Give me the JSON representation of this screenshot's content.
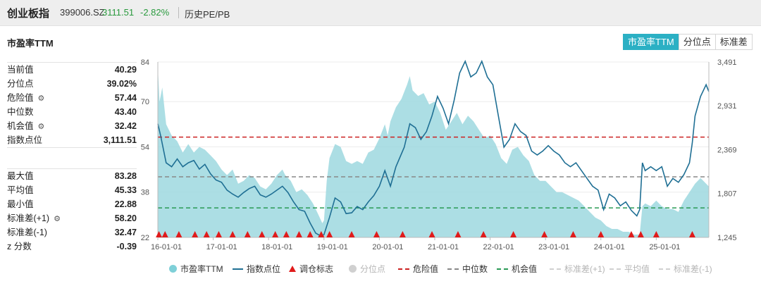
{
  "header": {
    "name": "创业板指",
    "code": "399006.SZ",
    "price": "3111.51",
    "change": "-2.82%",
    "history_link": "历史PE/PB"
  },
  "chart_title": "市盈率TTM",
  "tabs": [
    {
      "label": "市盈率TTM",
      "active": true
    },
    {
      "label": "分位点",
      "active": false
    },
    {
      "label": "标准差",
      "active": false
    }
  ],
  "stats_top": [
    {
      "label": "当前值",
      "value": "40.29",
      "icon": ""
    },
    {
      "label": "分位点",
      "value": "39.02%",
      "icon": ""
    },
    {
      "label": "危险值",
      "value": "57.44",
      "icon": "gear-icon"
    },
    {
      "label": "中位数",
      "value": "43.40",
      "icon": ""
    },
    {
      "label": "机会值",
      "value": "32.42",
      "icon": "gear-icon"
    },
    {
      "label": "指数点位",
      "value": "3,111.51",
      "icon": ""
    }
  ],
  "stats_bottom": [
    {
      "label": "最大值",
      "value": "83.28",
      "icon": ""
    },
    {
      "label": "平均值",
      "value": "45.33",
      "icon": ""
    },
    {
      "label": "最小值",
      "value": "22.88",
      "icon": ""
    },
    {
      "label": "标准差(+1)",
      "value": "58.20",
      "icon": "gear-icon"
    },
    {
      "label": "标准差(-1)",
      "value": "32.47",
      "icon": ""
    },
    {
      "label": "z 分数",
      "value": "-0.39",
      "icon": ""
    }
  ],
  "legend": [
    {
      "label": "市盈率TTM",
      "symbol": "dot",
      "color": "#7fd0d8",
      "dim": false
    },
    {
      "label": "指数点位",
      "symbol": "line",
      "color": "#1f6f94",
      "dim": false
    },
    {
      "label": "调仓标志",
      "symbol": "triangle",
      "color": "#e01b1b",
      "dim": false
    },
    {
      "label": "分位点",
      "symbol": "dot",
      "color": "#d0d0d0",
      "dim": true
    },
    {
      "label": "危险值",
      "symbol": "dash",
      "color": "#cc2222",
      "dim": false
    },
    {
      "label": "中位数",
      "symbol": "dash",
      "color": "#888888",
      "dim": false
    },
    {
      "label": "机会值",
      "symbol": "dash",
      "color": "#2a9a55",
      "dim": false
    },
    {
      "label": "标准差(+1)",
      "symbol": "dash",
      "color": "#d0d0d0",
      "dim": true
    },
    {
      "label": "平均值",
      "symbol": "dash",
      "color": "#d0d0d0",
      "dim": true
    },
    {
      "label": "标准差(-1)",
      "symbol": "dash",
      "color": "#d0d0d0",
      "dim": true
    }
  ],
  "chart_data": {
    "type": "area",
    "x_ticks": [
      "16-01-01",
      "17-01-01",
      "18-01-01",
      "19-01-01",
      "20-01-01",
      "21-01-01",
      "22-01-01",
      "23-01-01",
      "24-01-01",
      "25-01-01"
    ],
    "y_left_ticks": [
      "22",
      "38",
      "54",
      "70",
      "84"
    ],
    "y_left_range": [
      22,
      84
    ],
    "y_right_ticks": [
      "1,245",
      "1,807",
      "2,369",
      "2,931",
      "3,491"
    ],
    "y_right_range": [
      1245,
      3491
    ],
    "x_range": [
      2016.0,
      2025.95
    ],
    "reference_lines": [
      {
        "name": "危险值",
        "value": 57.44,
        "color": "#cc2222"
      },
      {
        "name": "中位数",
        "value": 43.4,
        "color": "#888888"
      },
      {
        "name": "机会值",
        "value": 32.42,
        "color": "#2a9a55"
      }
    ],
    "series": [
      {
        "name": "市盈率TTM",
        "color": "#9dd8df",
        "points": [
          [
            2016.0,
            82
          ],
          [
            2016.03,
            70
          ],
          [
            2016.08,
            75
          ],
          [
            2016.15,
            62
          ],
          [
            2016.25,
            58
          ],
          [
            2016.35,
            56
          ],
          [
            2016.45,
            52
          ],
          [
            2016.55,
            55
          ],
          [
            2016.65,
            52
          ],
          [
            2016.75,
            54
          ],
          [
            2016.85,
            53
          ],
          [
            2016.95,
            51
          ],
          [
            2017.05,
            49
          ],
          [
            2017.15,
            46
          ],
          [
            2017.25,
            44
          ],
          [
            2017.35,
            46
          ],
          [
            2017.45,
            41
          ],
          [
            2017.55,
            42
          ],
          [
            2017.65,
            44
          ],
          [
            2017.75,
            43
          ],
          [
            2017.85,
            40
          ],
          [
            2017.95,
            39
          ],
          [
            2018.05,
            41
          ],
          [
            2018.15,
            44
          ],
          [
            2018.25,
            46
          ],
          [
            2018.3,
            44
          ],
          [
            2018.4,
            42
          ],
          [
            2018.5,
            38
          ],
          [
            2018.6,
            39
          ],
          [
            2018.7,
            37
          ],
          [
            2018.8,
            34
          ],
          [
            2018.9,
            30
          ],
          [
            2018.97,
            27
          ],
          [
            2019.0,
            28
          ],
          [
            2019.05,
            42
          ],
          [
            2019.1,
            50
          ],
          [
            2019.2,
            55
          ],
          [
            2019.3,
            54
          ],
          [
            2019.4,
            49
          ],
          [
            2019.5,
            48
          ],
          [
            2019.6,
            49
          ],
          [
            2019.7,
            48
          ],
          [
            2019.8,
            52
          ],
          [
            2019.9,
            53
          ],
          [
            2020.0,
            57
          ],
          [
            2020.1,
            62
          ],
          [
            2020.15,
            58
          ],
          [
            2020.2,
            63
          ],
          [
            2020.3,
            68
          ],
          [
            2020.4,
            71
          ],
          [
            2020.5,
            76
          ],
          [
            2020.55,
            79
          ],
          [
            2020.6,
            74
          ],
          [
            2020.7,
            72
          ],
          [
            2020.8,
            73
          ],
          [
            2020.9,
            69
          ],
          [
            2021.0,
            70
          ],
          [
            2021.1,
            66
          ],
          [
            2021.2,
            60
          ],
          [
            2021.3,
            63
          ],
          [
            2021.4,
            66
          ],
          [
            2021.5,
            62
          ],
          [
            2021.6,
            65
          ],
          [
            2021.7,
            63
          ],
          [
            2021.8,
            60
          ],
          [
            2021.9,
            57
          ],
          [
            2022.0,
            58
          ],
          [
            2022.1,
            55
          ],
          [
            2022.2,
            50
          ],
          [
            2022.3,
            48
          ],
          [
            2022.4,
            53
          ],
          [
            2022.5,
            54
          ],
          [
            2022.6,
            51
          ],
          [
            2022.7,
            49
          ],
          [
            2022.8,
            44
          ],
          [
            2022.9,
            42
          ],
          [
            2023.0,
            42
          ],
          [
            2023.1,
            40
          ],
          [
            2023.2,
            38
          ],
          [
            2023.3,
            38
          ],
          [
            2023.4,
            37
          ],
          [
            2023.5,
            36
          ],
          [
            2023.6,
            35
          ],
          [
            2023.7,
            33
          ],
          [
            2023.8,
            31
          ],
          [
            2023.9,
            29
          ],
          [
            2024.0,
            28
          ],
          [
            2024.1,
            26
          ],
          [
            2024.2,
            25
          ],
          [
            2024.3,
            25
          ],
          [
            2024.4,
            24
          ],
          [
            2024.5,
            24
          ],
          [
            2024.6,
            23
          ],
          [
            2024.7,
            23
          ],
          [
            2024.75,
            33
          ],
          [
            2024.8,
            34
          ],
          [
            2024.9,
            33
          ],
          [
            2025.0,
            35
          ],
          [
            2025.1,
            33
          ],
          [
            2025.2,
            32
          ],
          [
            2025.3,
            32
          ],
          [
            2025.4,
            31
          ],
          [
            2025.5,
            35
          ],
          [
            2025.6,
            38
          ],
          [
            2025.7,
            41
          ],
          [
            2025.8,
            43
          ],
          [
            2025.9,
            41
          ],
          [
            2025.95,
            40
          ]
        ]
      },
      {
        "name": "指数点位",
        "color": "#1f6f94",
        "points": [
          [
            2016.0,
            2700
          ],
          [
            2016.05,
            2550
          ],
          [
            2016.15,
            2200
          ],
          [
            2016.25,
            2150
          ],
          [
            2016.35,
            2250
          ],
          [
            2016.45,
            2150
          ],
          [
            2016.55,
            2200
          ],
          [
            2016.65,
            2230
          ],
          [
            2016.75,
            2120
          ],
          [
            2016.85,
            2180
          ],
          [
            2016.95,
            2060
          ],
          [
            2017.05,
            1980
          ],
          [
            2017.15,
            1950
          ],
          [
            2017.25,
            1850
          ],
          [
            2017.35,
            1800
          ],
          [
            2017.45,
            1760
          ],
          [
            2017.55,
            1820
          ],
          [
            2017.65,
            1870
          ],
          [
            2017.75,
            1900
          ],
          [
            2017.85,
            1790
          ],
          [
            2017.95,
            1760
          ],
          [
            2018.05,
            1800
          ],
          [
            2018.15,
            1850
          ],
          [
            2018.25,
            1900
          ],
          [
            2018.35,
            1820
          ],
          [
            2018.45,
            1700
          ],
          [
            2018.55,
            1600
          ],
          [
            2018.65,
            1580
          ],
          [
            2018.75,
            1430
          ],
          [
            2018.85,
            1300
          ],
          [
            2018.95,
            1260
          ],
          [
            2019.0,
            1280
          ],
          [
            2019.1,
            1500
          ],
          [
            2019.2,
            1750
          ],
          [
            2019.3,
            1700
          ],
          [
            2019.4,
            1550
          ],
          [
            2019.5,
            1560
          ],
          [
            2019.6,
            1640
          ],
          [
            2019.7,
            1600
          ],
          [
            2019.8,
            1700
          ],
          [
            2019.9,
            1780
          ],
          [
            2020.0,
            1900
          ],
          [
            2020.1,
            2100
          ],
          [
            2020.2,
            1900
          ],
          [
            2020.3,
            2150
          ],
          [
            2020.45,
            2400
          ],
          [
            2020.55,
            2700
          ],
          [
            2020.65,
            2650
          ],
          [
            2020.75,
            2500
          ],
          [
            2020.85,
            2600
          ],
          [
            2020.95,
            2800
          ],
          [
            2021.05,
            3050
          ],
          [
            2021.15,
            2900
          ],
          [
            2021.25,
            2700
          ],
          [
            2021.35,
            3000
          ],
          [
            2021.45,
            3350
          ],
          [
            2021.55,
            3500
          ],
          [
            2021.65,
            3300
          ],
          [
            2021.75,
            3350
          ],
          [
            2021.85,
            3500
          ],
          [
            2021.95,
            3300
          ],
          [
            2022.05,
            3200
          ],
          [
            2022.15,
            2800
          ],
          [
            2022.25,
            2400
          ],
          [
            2022.35,
            2500
          ],
          [
            2022.45,
            2700
          ],
          [
            2022.55,
            2600
          ],
          [
            2022.65,
            2550
          ],
          [
            2022.75,
            2350
          ],
          [
            2022.85,
            2300
          ],
          [
            2022.95,
            2350
          ],
          [
            2023.05,
            2420
          ],
          [
            2023.15,
            2350
          ],
          [
            2023.25,
            2300
          ],
          [
            2023.35,
            2200
          ],
          [
            2023.45,
            2150
          ],
          [
            2023.55,
            2200
          ],
          [
            2023.65,
            2100
          ],
          [
            2023.75,
            2000
          ],
          [
            2023.85,
            1900
          ],
          [
            2023.95,
            1850
          ],
          [
            2024.05,
            1600
          ],
          [
            2024.15,
            1800
          ],
          [
            2024.25,
            1750
          ],
          [
            2024.35,
            1650
          ],
          [
            2024.45,
            1700
          ],
          [
            2024.55,
            1590
          ],
          [
            2024.65,
            1520
          ],
          [
            2024.7,
            1600
          ],
          [
            2024.75,
            2200
          ],
          [
            2024.8,
            2100
          ],
          [
            2024.9,
            2150
          ],
          [
            2025.0,
            2100
          ],
          [
            2025.1,
            2150
          ],
          [
            2025.2,
            1900
          ],
          [
            2025.3,
            2000
          ],
          [
            2025.4,
            1950
          ],
          [
            2025.5,
            2050
          ],
          [
            2025.6,
            2200
          ],
          [
            2025.65,
            2450
          ],
          [
            2025.7,
            2800
          ],
          [
            2025.8,
            3050
          ],
          [
            2025.9,
            3200
          ],
          [
            2025.95,
            3111.51
          ]
        ]
      }
    ],
    "markers": {
      "name": "调仓标志",
      "x": [
        2016.02,
        2016.13,
        2016.38,
        2016.67,
        2016.88,
        2017.1,
        2017.35,
        2017.62,
        2017.88,
        2018.12,
        2018.32,
        2018.55,
        2018.75,
        2018.95,
        2019.1,
        2019.5,
        2019.95,
        2020.42,
        2020.95,
        2021.42,
        2021.88,
        2022.42,
        2022.98,
        2023.5,
        2024.0,
        2024.55,
        2024.72,
        2025.0,
        2025.65
      ]
    }
  }
}
